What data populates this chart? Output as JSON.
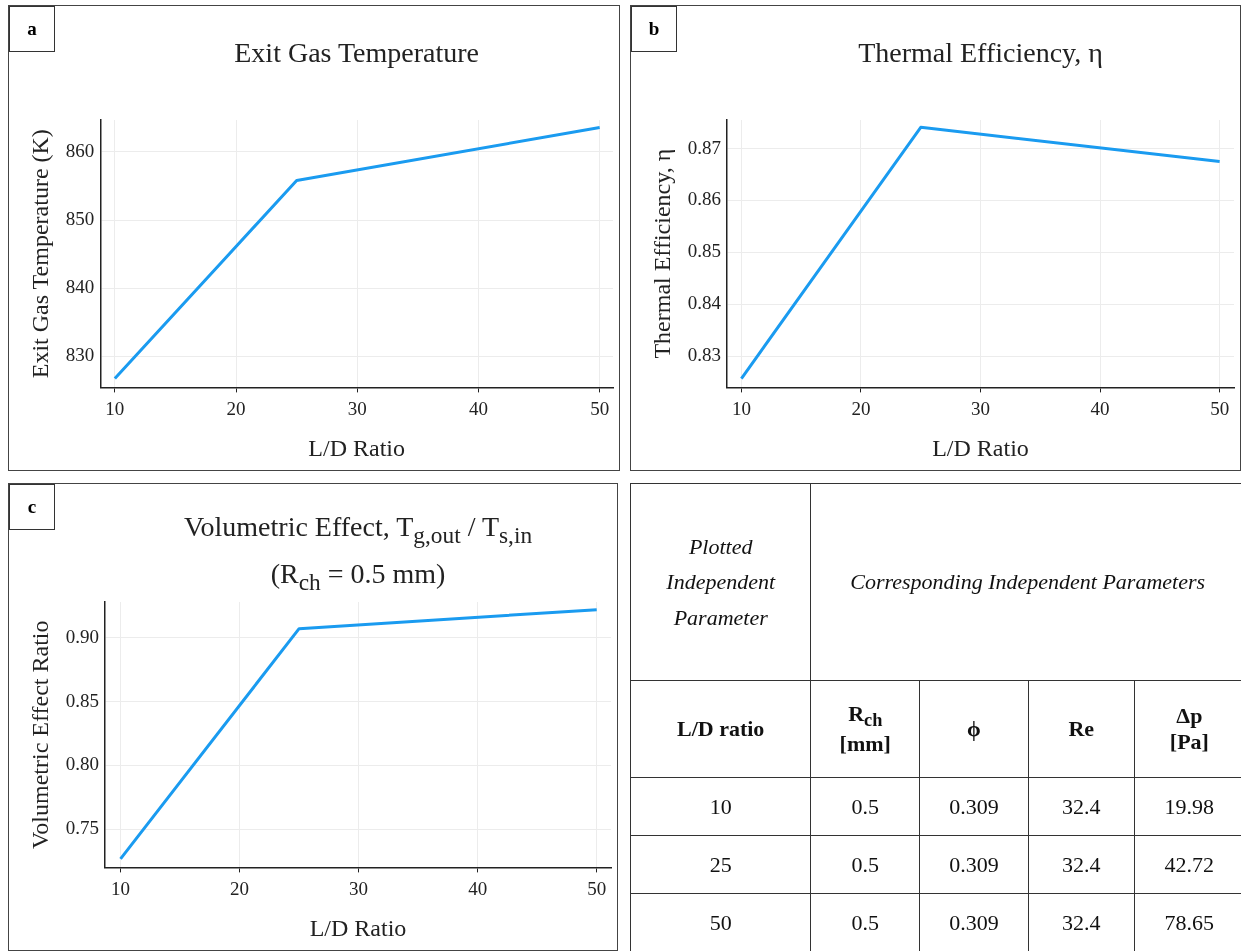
{
  "chart_data": [
    {
      "type": "line",
      "title": "Exit Gas Temperature",
      "xlabel": "L/D Ratio",
      "ylabel": "Exit Gas Temperature (K)",
      "annotations": [
        "a"
      ],
      "x": [
        10,
        25,
        50
      ],
      "values": [
        826.7,
        855.8,
        863.6
      ],
      "color": "#1a9bf0",
      "xlim": [
        8.8,
        51.1
      ],
      "ylim": [
        825.4,
        864.7
      ],
      "xticks": [
        10,
        20,
        30,
        40,
        50
      ],
      "yticks": [
        830,
        840,
        850,
        860
      ],
      "grid": true
    },
    {
      "type": "line",
      "title": "Thermal Efficiency, η",
      "xlabel": "L/D Ratio",
      "ylabel": "Thermal Efficiency, η",
      "annotations": [
        "b"
      ],
      "x": [
        10,
        25,
        50
      ],
      "values": [
        0.8257,
        0.8741,
        0.8675
      ],
      "color": "#1a9bf0",
      "xlim": [
        8.8,
        51.2
      ],
      "ylim": [
        0.824,
        0.8755
      ],
      "xticks": [
        10,
        20,
        30,
        40,
        50
      ],
      "yticks": [
        0.83,
        0.84,
        0.85,
        0.86,
        0.87
      ],
      "grid": true
    },
    {
      "type": "line",
      "title": "Volumetric Effect, T$_{g,out}$ / T$_{s,in}$",
      "subtitle": "(R$_{ch}$ = 0.5 mm)",
      "xlabel": "L/D Ratio",
      "ylabel": "Volumetric Effect Ratio",
      "annotations": [
        "c"
      ],
      "x": [
        10,
        25,
        50
      ],
      "values": [
        0.7267,
        0.9071,
        0.922
      ],
      "color": "#1a9bf0",
      "xlim": [
        8.7,
        51.2
      ],
      "ylim": [
        0.72,
        0.928
      ],
      "xticks": [
        10,
        20,
        30,
        40,
        50
      ],
      "yticks": [
        {
          "value": 0.75,
          "label": "0.75"
        },
        {
          "value": 0.8,
          "label": "0.80"
        },
        {
          "value": 0.85,
          "label": "0.85"
        },
        {
          "value": 0.9,
          "label": "0.90"
        }
      ],
      "grid": true
    },
    {
      "type": "other",
      "annotations": [
        "Plotted Independent Parameter",
        "Corresponding Independent Parameters",
        "L/D ratio",
        "R$_{ch}$\n[mm]",
        "ϕ",
        "Re",
        "Δp\n[Pa]",
        "10",
        "0.5",
        "0.309",
        "32.4",
        "19.98",
        "25",
        "0.5",
        "0.309",
        "32.4",
        "42.72",
        "50",
        "0.5",
        "0.309",
        "32.4",
        "78.65"
      ]
    }
  ]
}
